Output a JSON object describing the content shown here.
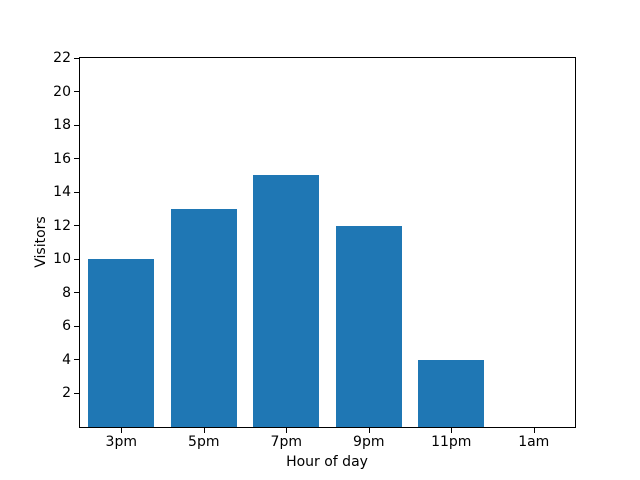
{
  "chart_data": {
    "type": "bar",
    "categories": [
      "3pm",
      "5pm",
      "7pm",
      "9pm",
      "11pm",
      "1am"
    ],
    "values": [
      10,
      13,
      15,
      12,
      4,
      0
    ],
    "xlabel": "Hour of day",
    "ylabel": "Visitors",
    "ylim": [
      0,
      22
    ],
    "yticks": [
      2,
      4,
      6,
      8,
      10,
      12,
      14,
      16,
      18,
      20,
      22
    ],
    "bar_color": "#1f77b4",
    "axis_color": "#000000",
    "background_color": "#ffffff",
    "grid": false,
    "legend": null
  }
}
